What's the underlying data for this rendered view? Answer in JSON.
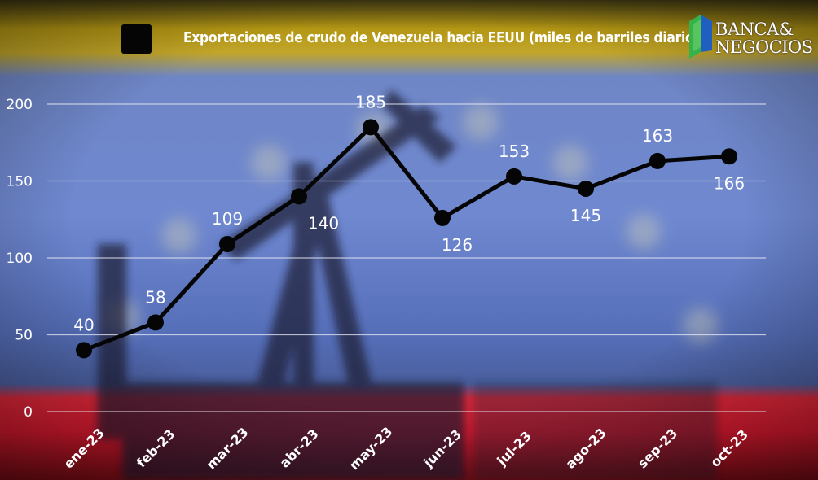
{
  "title": "Exportaciones de crudo de Venezuela hacia EEUU (miles de barriles diarios)",
  "logo": {
    "line1": "BANCA&",
    "line2": "NEGOCIOS"
  },
  "colors": {
    "flag_yellow": "#c9a61a",
    "flag_blue": "#5a78c8",
    "flag_red": "#e81c34",
    "line": "#050505",
    "text": "#ffffff",
    "grid": "#e6e9f4"
  },
  "chart_data": {
    "type": "line",
    "title": "Exportaciones de crudo de Venezuela hacia EEUU (miles de barriles diarios)",
    "categories": [
      "ene-23",
      "feb-23",
      "mar-23",
      "abr-23",
      "may-23",
      "jun-23",
      "jul-23",
      "ago-23",
      "sep-23",
      "oct-23"
    ],
    "series": [
      {
        "values": [
          40,
          58,
          109,
          140,
          185,
          126,
          153,
          145,
          163,
          166
        ]
      }
    ],
    "yticks": [
      "200",
      "150",
      "100",
      "50",
      "0"
    ],
    "ylim": [
      0,
      200
    ],
    "grid": true,
    "legend": "top-left",
    "data_labels": true
  }
}
